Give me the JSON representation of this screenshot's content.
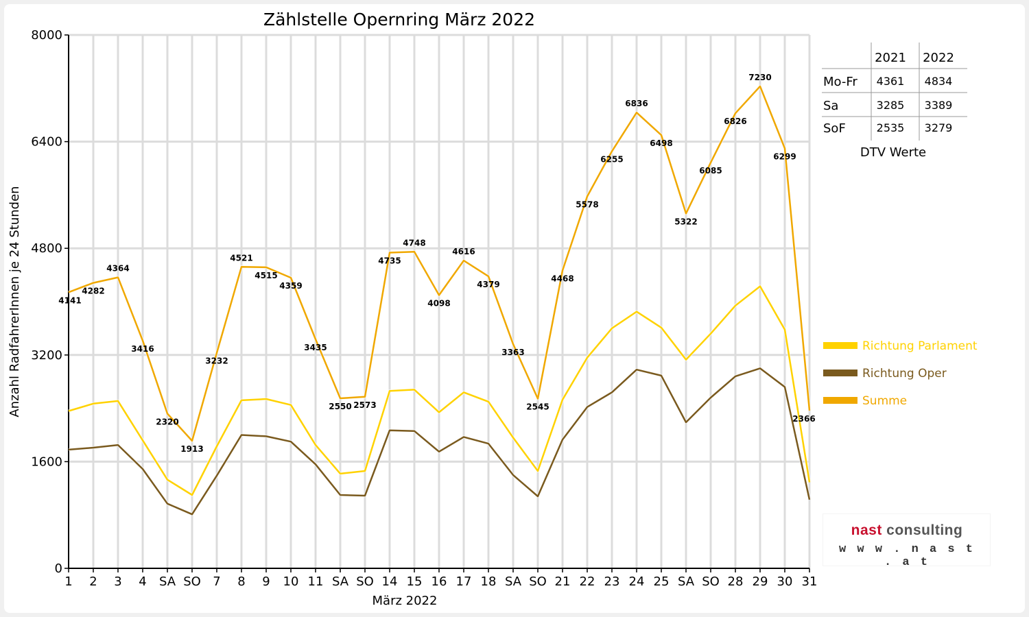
{
  "chart_data": {
    "type": "line",
    "title": "Zählstelle Opernring März 2022",
    "xlabel": "März 2022",
    "ylabel": "Anzahl RadfahrerInnen je 24 Stunden",
    "ylim": [
      0,
      8000
    ],
    "yticks": [
      "0",
      "1600",
      "3200",
      "4800",
      "6400",
      "8000"
    ],
    "grid": true,
    "legend_position": "right",
    "categories": [
      "1",
      "2",
      "3",
      "4",
      "SA",
      "SO",
      "7",
      "8",
      "9",
      "10",
      "11",
      "SA",
      "SO",
      "14",
      "15",
      "16",
      "17",
      "18",
      "SA",
      "SO",
      "21",
      "22",
      "23",
      "24",
      "25",
      "SA",
      "SO",
      "28",
      "29",
      "30",
      "31"
    ],
    "weekend_categories": [
      "SO"
    ],
    "series": [
      {
        "name": "Richtung Parlament",
        "color": "#ffd200",
        "values": [
          2360,
          2470,
          2510,
          1920,
          1330,
          1100,
          1830,
          2520,
          2540,
          2450,
          1850,
          1420,
          1460,
          2660,
          2680,
          2340,
          2640,
          2500,
          1960,
          1460,
          2530,
          3160,
          3600,
          3850,
          3610,
          3130,
          3520,
          3940,
          4230,
          3580,
          1290
        ]
      },
      {
        "name": "Richtung Oper",
        "color": "#7a5a1e",
        "values": [
          1780,
          1810,
          1850,
          1490,
          970,
          810,
          1390,
          2000,
          1980,
          1900,
          1560,
          1100,
          1090,
          2070,
          2060,
          1750,
          1970,
          1870,
          1400,
          1080,
          1930,
          2420,
          2640,
          2980,
          2890,
          2190,
          2560,
          2880,
          3000,
          2720,
          1030
        ]
      },
      {
        "name": "Summe",
        "color": "#f0a800",
        "values": [
          4141,
          4282,
          4364,
          3416,
          2320,
          1913,
          3232,
          4521,
          4515,
          4359,
          3435,
          2550,
          2573,
          4735,
          4748,
          4098,
          4616,
          4379,
          3363,
          2545,
          4468,
          5578,
          6255,
          6836,
          6498,
          5322,
          6085,
          6826,
          7230,
          6299,
          2366
        ],
        "labels": [
          "4141",
          "4282",
          "4364",
          "3416",
          "2320",
          "1913",
          "3232",
          "4521",
          "4515",
          "4359",
          "3435",
          "2550",
          "2573",
          "4735",
          "4748",
          "4098",
          "4616",
          "4379",
          "3363",
          "2545",
          "4468",
          "5578",
          "6255",
          "6836",
          "6498",
          "5322",
          "6085",
          "6826",
          "7230",
          "6299",
          "2366"
        ]
      }
    ]
  },
  "dtv_table": {
    "caption": "DTV Werte",
    "headers": [
      "",
      "2021",
      "2022"
    ],
    "rows": [
      {
        "label": "Mo-Fr",
        "v2021": "4361",
        "v2022": "4834"
      },
      {
        "label": "Sa",
        "v2021": "3285",
        "v2022": "3389"
      },
      {
        "label": "SoF",
        "v2021": "2535",
        "v2022": "3279"
      }
    ]
  },
  "logo": {
    "brand_part1": "nast",
    "brand_part2": "consulting",
    "url": "w w w . n a s t . a t"
  },
  "colors": {
    "parlament": "#ffd200",
    "oper": "#7a5a1e",
    "summe": "#f0a800",
    "weekend_tick": "#ff0000",
    "grid": "#dcdcdc"
  }
}
